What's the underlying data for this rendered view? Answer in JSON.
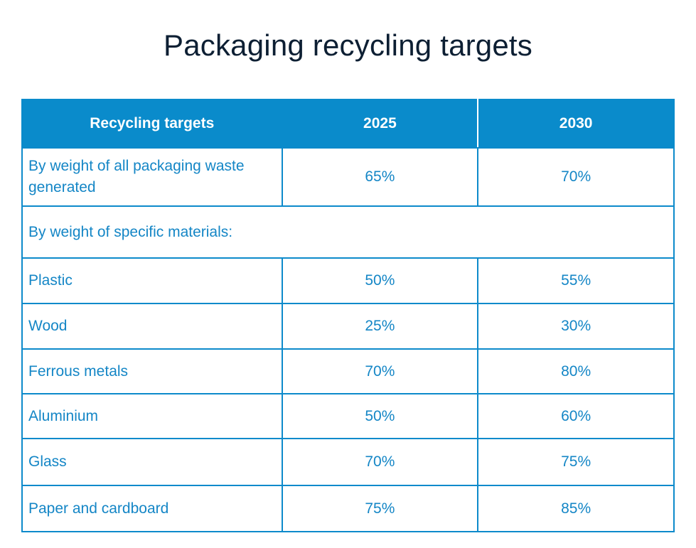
{
  "title": "Packaging recycling targets",
  "colors": {
    "header_bg": "#0a8bcb",
    "text": "#1486c6",
    "title": "#0d1f33"
  },
  "table": {
    "headers": [
      "Recycling targets",
      "2025",
      "2030"
    ],
    "overall": {
      "label": "By weight of all packaging waste generated",
      "v2025": "65%",
      "v2030": "70%"
    },
    "section_label": "By weight of specific materials:",
    "rows": [
      {
        "label": "Plastic",
        "v2025": "50%",
        "v2030": "55%"
      },
      {
        "label": "Wood",
        "v2025": "25%",
        "v2030": "30%"
      },
      {
        "label": "Ferrous metals",
        "v2025": "70%",
        "v2030": "80%"
      },
      {
        "label": "Aluminium",
        "v2025": "50%",
        "v2030": "60%"
      },
      {
        "label": "Glass",
        "v2025": "70%",
        "v2030": "75%"
      },
      {
        "label": "Paper and cardboard",
        "v2025": "75%",
        "v2030": "85%"
      }
    ]
  }
}
